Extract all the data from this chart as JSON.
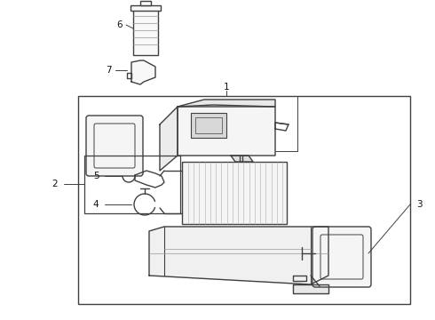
{
  "bg_color": "#ffffff",
  "line_color": "#404040",
  "label_color": "#111111",
  "fig_width": 4.9,
  "fig_height": 3.6,
  "dpi": 100
}
